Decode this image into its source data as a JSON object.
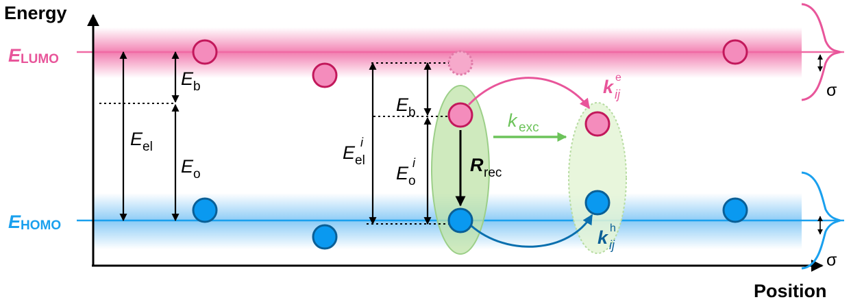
{
  "axes": {
    "y_label": "Energy",
    "x_label": "Position"
  },
  "levels": {
    "lumo": {
      "symbol": "E",
      "subscript": "LUMO"
    },
    "homo": {
      "symbol": "E",
      "subscript": "HOMO"
    }
  },
  "energies": {
    "binding": {
      "symbol": "E",
      "subscript": "b"
    },
    "electrical": {
      "symbol": "E",
      "subscript": "el"
    },
    "optical": {
      "symbol": "E",
      "subscript": "o"
    },
    "electrical_site": {
      "symbol": "E",
      "subscript": "el",
      "superscript": "i"
    },
    "optical_site": {
      "symbol": "E",
      "subscript": "o",
      "superscript": "i"
    }
  },
  "rates": {
    "exciton": {
      "symbol": "k",
      "subscript": "exc"
    },
    "recombination": {
      "symbol": "R",
      "subscript": "rec"
    },
    "electron_hop": {
      "symbol": "k",
      "subscript": "ij",
      "superscript": "e"
    },
    "hole_hop": {
      "symbol": "k",
      "subscript": "ij",
      "superscript": "h"
    }
  },
  "disorder": {
    "symbol": "σ"
  },
  "colors": {
    "lumo": "#e8559a",
    "lumo_dark": "#c2185b",
    "homo": "#0095ea",
    "homo_dark": "#0a5f96",
    "exciton": "#6cc35a",
    "axis": "#000000"
  }
}
